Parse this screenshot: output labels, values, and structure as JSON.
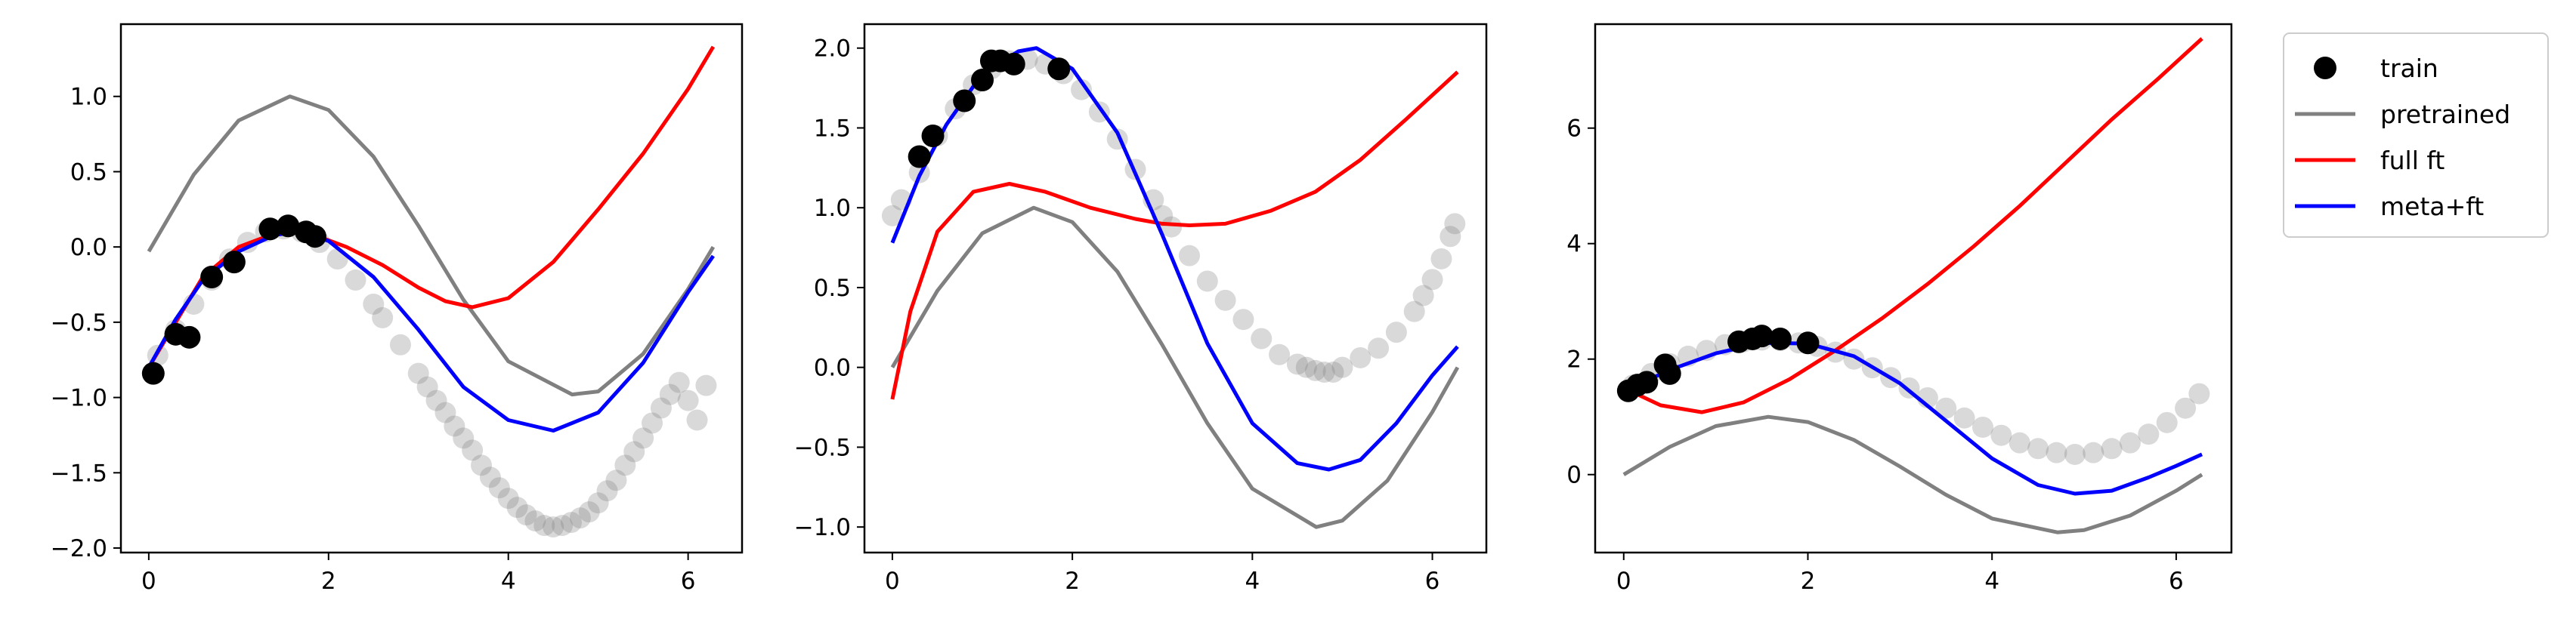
{
  "colors": {
    "train": "#000000",
    "test_points": "#808080",
    "pretrained": "#808080",
    "full_ft": "#ff0000",
    "meta_ft": "#0000ff"
  },
  "legend": {
    "placement": "outside-right-top",
    "items": [
      {
        "key": "train",
        "label": "train",
        "marker": "circle"
      },
      {
        "key": "pretrained",
        "label": "pretrained",
        "marker": "line"
      },
      {
        "key": "full_ft",
        "label": "full ft",
        "marker": "line"
      },
      {
        "key": "meta_ft",
        "label": "meta+ft",
        "marker": "line"
      }
    ]
  },
  "chart_data": [
    {
      "type": "line",
      "xlim": [
        -0.31,
        6.6
      ],
      "ylim": [
        -2.03,
        1.48
      ],
      "xticks": [
        0,
        2,
        4,
        6
      ],
      "xtick_labels": [
        "0",
        "2",
        "4",
        "6"
      ],
      "yticks": [
        -2.0,
        -1.5,
        -1.0,
        -0.5,
        0.0,
        0.5,
        1.0
      ],
      "ytick_labels": [
        "−2.0",
        "−1.5",
        "−1.0",
        "−0.5",
        "0.0",
        "0.5",
        "1.0"
      ],
      "grid": false,
      "test_points": {
        "x": [
          0.1,
          0.3,
          0.5,
          0.7,
          0.9,
          1.1,
          1.3,
          1.5,
          1.7,
          1.9,
          2.1,
          2.3,
          2.5,
          2.6,
          2.8,
          3.0,
          3.1,
          3.2,
          3.3,
          3.4,
          3.5,
          3.6,
          3.7,
          3.8,
          3.9,
          4.0,
          4.1,
          4.2,
          4.3,
          4.4,
          4.5,
          4.6,
          4.7,
          4.8,
          4.9,
          5.0,
          5.1,
          5.2,
          5.3,
          5.4,
          5.5,
          5.6,
          5.7,
          5.8,
          5.9,
          6.0,
          6.1,
          6.2
        ],
        "y": [
          -0.72,
          -0.55,
          -0.38,
          -0.22,
          -0.08,
          0.03,
          0.1,
          0.12,
          0.1,
          0.03,
          -0.08,
          -0.22,
          -0.38,
          -0.47,
          -0.65,
          -0.84,
          -0.93,
          -1.02,
          -1.1,
          -1.19,
          -1.27,
          -1.35,
          -1.45,
          -1.53,
          -1.6,
          -1.67,
          -1.73,
          -1.78,
          -1.82,
          -1.85,
          -1.86,
          -1.85,
          -1.83,
          -1.8,
          -1.76,
          -1.7,
          -1.62,
          -1.55,
          -1.45,
          -1.36,
          -1.27,
          -1.17,
          -1.07,
          -0.98,
          -0.9,
          -1.02,
          -1.15,
          -0.92
        ],
        "opacity": 0.3
      },
      "train": {
        "x": [
          0.05,
          0.3,
          0.45,
          0.7,
          0.95,
          1.35,
          1.55,
          1.75,
          1.85
        ],
        "y": [
          -0.84,
          -0.58,
          -0.6,
          -0.2,
          -0.1,
          0.12,
          0.14,
          0.1,
          0.07
        ]
      },
      "series": [
        {
          "key": "pretrained",
          "x": [
            0,
            0.5,
            1,
            1.57,
            2,
            2.5,
            3,
            3.5,
            4,
            4.71,
            5,
            5.5,
            6,
            6.28
          ],
          "y": [
            -0.03,
            0.48,
            0.84,
            1.0,
            0.91,
            0.6,
            0.14,
            -0.35,
            -0.76,
            -0.98,
            -0.96,
            -0.71,
            -0.28,
            0.0
          ]
        },
        {
          "key": "full_ft",
          "x": [
            0,
            0.3,
            0.6,
            1.0,
            1.4,
            1.75,
            2.2,
            2.6,
            3.0,
            3.3,
            3.6,
            4.0,
            4.5,
            5.0,
            5.5,
            6.0,
            6.28
          ],
          "y": [
            -0.8,
            -0.5,
            -0.2,
            0.0,
            0.09,
            0.1,
            0.0,
            -0.12,
            -0.27,
            -0.36,
            -0.4,
            -0.34,
            -0.1,
            0.25,
            0.62,
            1.05,
            1.33
          ]
        },
        {
          "key": "meta_ft",
          "x": [
            0,
            0.3,
            0.6,
            1.0,
            1.4,
            1.7,
            2.0,
            2.5,
            3.0,
            3.5,
            4.0,
            4.5,
            5.0,
            5.5,
            6.0,
            6.28
          ],
          "y": [
            -0.8,
            -0.48,
            -0.22,
            -0.03,
            0.08,
            0.1,
            0.04,
            -0.2,
            -0.55,
            -0.93,
            -1.15,
            -1.22,
            -1.1,
            -0.77,
            -0.3,
            -0.06
          ]
        }
      ]
    },
    {
      "type": "line",
      "xlim": [
        -0.31,
        6.6
      ],
      "ylim": [
        -1.16,
        2.15
      ],
      "xticks": [
        0,
        2,
        4,
        6
      ],
      "xtick_labels": [
        "0",
        "2",
        "4",
        "6"
      ],
      "yticks": [
        -1.0,
        -0.5,
        0.0,
        0.5,
        1.0,
        1.5,
        2.0
      ],
      "ytick_labels": [
        "−1.0",
        "−0.5",
        "0.0",
        "0.5",
        "1.0",
        "1.5",
        "2.0"
      ],
      "grid": false,
      "test_points": {
        "x": [
          0.0,
          0.1,
          0.3,
          0.5,
          0.7,
          0.9,
          1.1,
          1.3,
          1.5,
          1.7,
          1.9,
          2.1,
          2.3,
          2.5,
          2.7,
          2.9,
          3.0,
          3.1,
          3.3,
          3.5,
          3.7,
          3.9,
          4.1,
          4.3,
          4.5,
          4.6,
          4.7,
          4.8,
          4.9,
          5.0,
          5.2,
          5.4,
          5.6,
          5.8,
          5.9,
          6.0,
          6.1,
          6.2,
          6.25
        ],
        "y": [
          0.95,
          1.05,
          1.22,
          1.45,
          1.62,
          1.77,
          1.87,
          1.92,
          1.93,
          1.9,
          1.84,
          1.74,
          1.6,
          1.43,
          1.24,
          1.05,
          0.95,
          0.88,
          0.7,
          0.54,
          0.42,
          0.3,
          0.18,
          0.08,
          0.02,
          0.0,
          -0.02,
          -0.03,
          -0.03,
          0.0,
          0.06,
          0.12,
          0.22,
          0.35,
          0.45,
          0.55,
          0.68,
          0.82,
          0.9
        ],
        "opacity": 0.3
      },
      "train": {
        "x": [
          0.3,
          0.45,
          0.8,
          1.0,
          1.1,
          1.2,
          1.35,
          1.85
        ],
        "y": [
          1.32,
          1.45,
          1.67,
          1.8,
          1.92,
          1.92,
          1.9,
          1.87
        ]
      },
      "series": [
        {
          "key": "pretrained",
          "x": [
            0,
            0.5,
            1,
            1.57,
            2,
            2.5,
            3,
            3.5,
            4,
            4.71,
            5,
            5.5,
            6,
            6.28
          ],
          "y": [
            0.0,
            0.48,
            0.84,
            1.0,
            0.91,
            0.6,
            0.14,
            -0.35,
            -0.76,
            -1.0,
            -0.96,
            -0.71,
            -0.28,
            0.0
          ]
        },
        {
          "key": "full_ft",
          "x": [
            0,
            0.2,
            0.5,
            0.9,
            1.3,
            1.7,
            2.2,
            2.7,
            3.0,
            3.3,
            3.7,
            4.2,
            4.7,
            5.2,
            5.7,
            6.28
          ],
          "y": [
            -0.2,
            0.35,
            0.85,
            1.1,
            1.15,
            1.1,
            1.0,
            0.93,
            0.9,
            0.89,
            0.9,
            0.98,
            1.1,
            1.3,
            1.55,
            1.85
          ]
        },
        {
          "key": "meta_ft",
          "x": [
            0,
            0.3,
            0.6,
            1.0,
            1.4,
            1.6,
            2.0,
            2.5,
            3.0,
            3.5,
            4.0,
            4.5,
            4.85,
            5.2,
            5.6,
            6.0,
            6.28
          ],
          "y": [
            0.78,
            1.2,
            1.52,
            1.84,
            1.98,
            2.0,
            1.87,
            1.47,
            0.83,
            0.15,
            -0.35,
            -0.6,
            -0.64,
            -0.58,
            -0.35,
            -0.05,
            0.13
          ]
        }
      ]
    },
    {
      "type": "line",
      "xlim": [
        -0.31,
        6.6
      ],
      "ylim": [
        -1.35,
        7.8
      ],
      "xticks": [
        0,
        2,
        4,
        6
      ],
      "xtick_labels": [
        "0",
        "2",
        "4",
        "6"
      ],
      "yticks": [
        0,
        2,
        4,
        6
      ],
      "ytick_labels": [
        "0",
        "2",
        "4",
        "6"
      ],
      "grid": false,
      "test_points": {
        "x": [
          0.1,
          0.3,
          0.5,
          0.7,
          0.9,
          1.1,
          1.3,
          1.5,
          1.7,
          1.9,
          2.1,
          2.3,
          2.5,
          2.7,
          2.9,
          3.1,
          3.3,
          3.5,
          3.7,
          3.9,
          4.1,
          4.3,
          4.5,
          4.7,
          4.9,
          5.1,
          5.3,
          5.5,
          5.7,
          5.9,
          6.1,
          6.25
        ],
        "y": [
          1.55,
          1.75,
          1.92,
          2.05,
          2.15,
          2.25,
          2.3,
          2.33,
          2.32,
          2.28,
          2.22,
          2.12,
          2.0,
          1.85,
          1.68,
          1.5,
          1.33,
          1.15,
          0.98,
          0.82,
          0.68,
          0.55,
          0.45,
          0.38,
          0.35,
          0.38,
          0.45,
          0.55,
          0.7,
          0.9,
          1.15,
          1.4
        ],
        "opacity": 0.3
      },
      "train": {
        "x": [
          0.05,
          0.15,
          0.25,
          0.45,
          0.5,
          1.25,
          1.4,
          1.5,
          1.7,
          2.0
        ],
        "y": [
          1.45,
          1.55,
          1.6,
          1.9,
          1.75,
          2.3,
          2.35,
          2.4,
          2.35,
          2.28
        ]
      },
      "series": [
        {
          "key": "pretrained",
          "x": [
            0,
            0.5,
            1,
            1.57,
            2,
            2.5,
            3,
            3.5,
            4,
            4.71,
            5,
            5.5,
            6,
            6.28
          ],
          "y": [
            0.0,
            0.48,
            0.84,
            1.0,
            0.91,
            0.6,
            0.14,
            -0.35,
            -0.76,
            -1.0,
            -0.96,
            -0.71,
            -0.28,
            0.0
          ]
        },
        {
          "key": "full_ft",
          "x": [
            0,
            0.4,
            0.85,
            1.3,
            1.8,
            2.3,
            2.8,
            3.3,
            3.8,
            4.3,
            4.8,
            5.3,
            5.8,
            6.28
          ],
          "y": [
            1.5,
            1.2,
            1.08,
            1.25,
            1.65,
            2.15,
            2.7,
            3.3,
            3.95,
            4.65,
            5.4,
            6.15,
            6.85,
            7.55
          ]
        },
        {
          "key": "meta_ft",
          "x": [
            0,
            0.3,
            0.6,
            1.0,
            1.5,
            2.0,
            2.5,
            3.0,
            3.5,
            4.0,
            4.5,
            4.9,
            5.3,
            5.7,
            6.0,
            6.28
          ],
          "y": [
            1.42,
            1.67,
            1.87,
            2.1,
            2.28,
            2.27,
            2.05,
            1.58,
            0.93,
            0.28,
            -0.18,
            -0.33,
            -0.28,
            -0.05,
            0.15,
            0.35
          ]
        }
      ]
    }
  ]
}
